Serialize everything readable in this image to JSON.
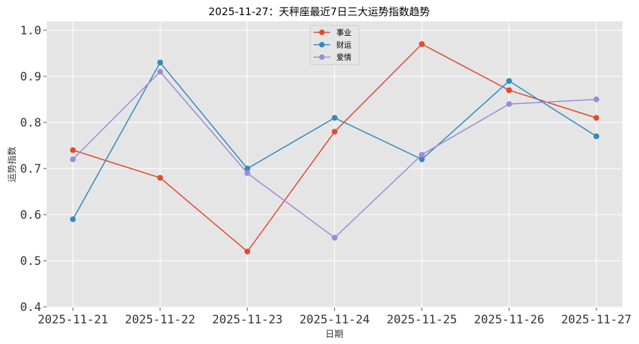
{
  "chart_data": {
    "type": "line",
    "title": "2025-11-27：天秤座最近7日三大运势指数趋势",
    "xlabel": "日期",
    "ylabel": "运势指数",
    "categories": [
      "2025-11-21",
      "2025-11-22",
      "2025-11-23",
      "2025-11-24",
      "2025-11-25",
      "2025-11-26",
      "2025-11-27"
    ],
    "ylim": [
      0.4,
      1.0
    ],
    "yticks": [
      "0.4",
      "0.5",
      "0.6",
      "0.7",
      "0.8",
      "0.9",
      "1.0"
    ],
    "grid": true,
    "legend_position": "top-center",
    "series": [
      {
        "name": "事业",
        "color": "#E24A33",
        "values": [
          0.74,
          0.68,
          0.52,
          0.78,
          0.97,
          0.87,
          0.81
        ]
      },
      {
        "name": "财运",
        "color": "#348ABD",
        "values": [
          0.59,
          0.93,
          0.7,
          0.81,
          0.72,
          0.89,
          0.77
        ]
      },
      {
        "name": "爱情",
        "color": "#988ED5",
        "values": [
          0.72,
          0.91,
          0.69,
          0.55,
          0.73,
          0.84,
          0.85
        ]
      }
    ]
  }
}
